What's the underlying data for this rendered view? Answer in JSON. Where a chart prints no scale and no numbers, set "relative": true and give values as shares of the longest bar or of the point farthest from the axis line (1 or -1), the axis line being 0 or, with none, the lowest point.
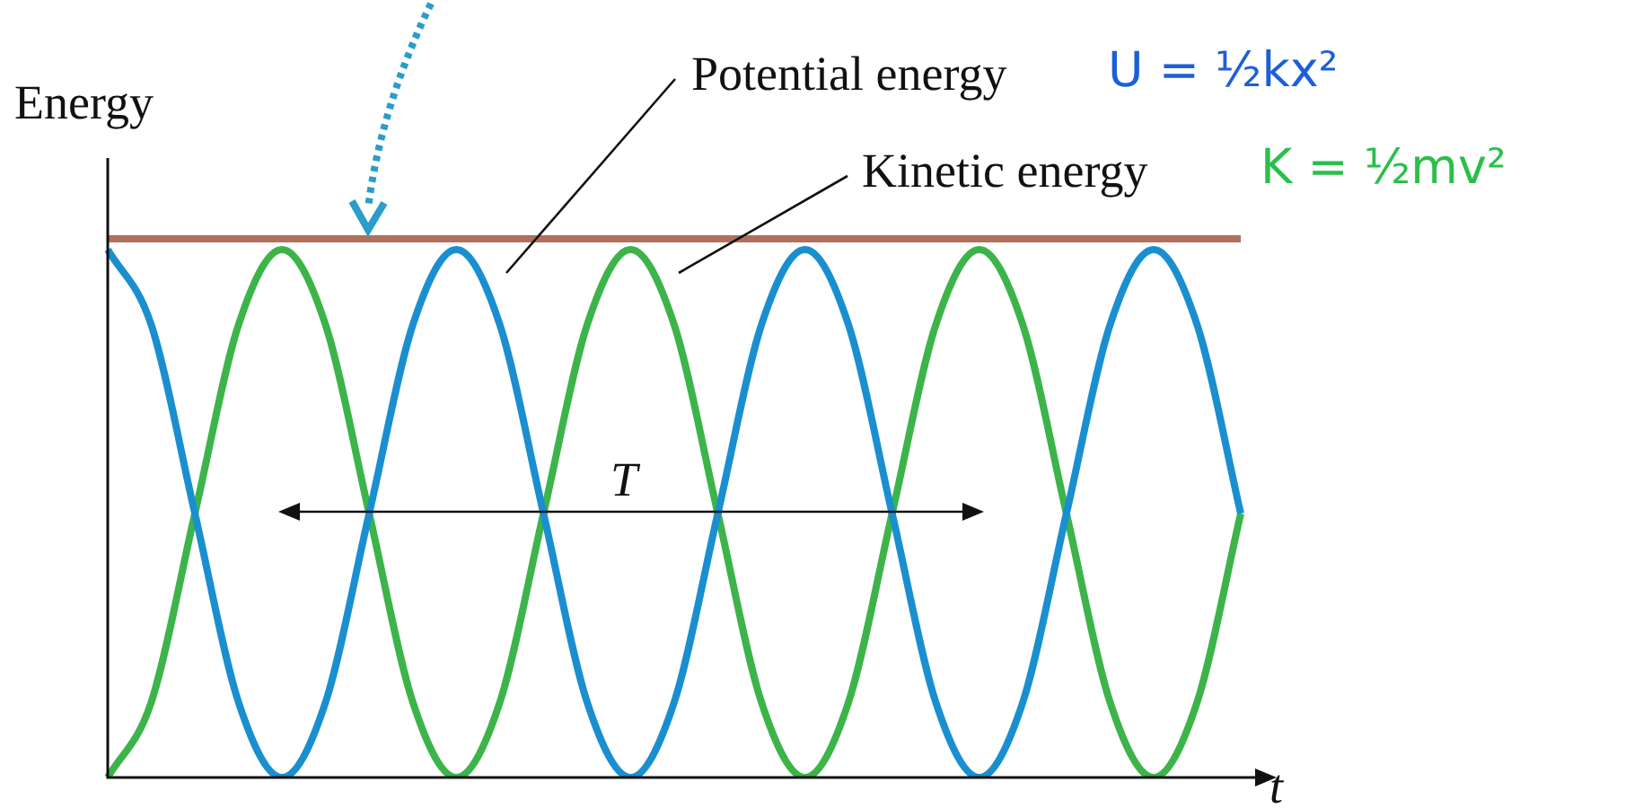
{
  "chart_data": {
    "type": "line",
    "relative": true,
    "xlabel": "t",
    "ylabel": "Energy",
    "categories": [
      null,
      null,
      null,
      null,
      null,
      null,
      null,
      null,
      null,
      null,
      null,
      null,
      null,
      null,
      null,
      null,
      null,
      null,
      null,
      null,
      null,
      null,
      null,
      null,
      null,
      null,
      null
    ],
    "series": [
      {
        "name": "Potential energy",
        "color": "#1a8fd0",
        "values": [
          0.98,
          0.84,
          0.49,
          0.14,
          0,
          0.14,
          0.49,
          0.84,
          0.98,
          0.84,
          0.49,
          0.14,
          0,
          0.14,
          0.49,
          0.84,
          0.98,
          0.84,
          0.49,
          0.14,
          0,
          0.14,
          0.49,
          0.84,
          0.98,
          0.84,
          0.49
        ]
      },
      {
        "name": "Kinetic energy",
        "color": "#3cb44a",
        "values": [
          0,
          0.14,
          0.49,
          0.84,
          0.98,
          0.84,
          0.49,
          0.14,
          0,
          0.14,
          0.49,
          0.84,
          0.98,
          0.84,
          0.49,
          0.14,
          0,
          0.14,
          0.49,
          0.84,
          0.98,
          0.84,
          0.49,
          0.14,
          0,
          0.14,
          0.49
        ]
      },
      {
        "color": "#b0705e",
        "values": [
          1,
          1,
          1,
          1,
          1,
          1,
          1,
          1,
          1,
          1,
          1,
          1,
          1,
          1,
          1,
          1,
          1,
          1,
          1,
          1,
          1,
          1,
          1,
          1,
          1,
          1,
          1
        ]
      }
    ],
    "annotations": [
      "T",
      "U = ½kx²",
      "K = ½mv²"
    ],
    "legend": false,
    "marker": "none",
    "line_style": "solid"
  }
}
